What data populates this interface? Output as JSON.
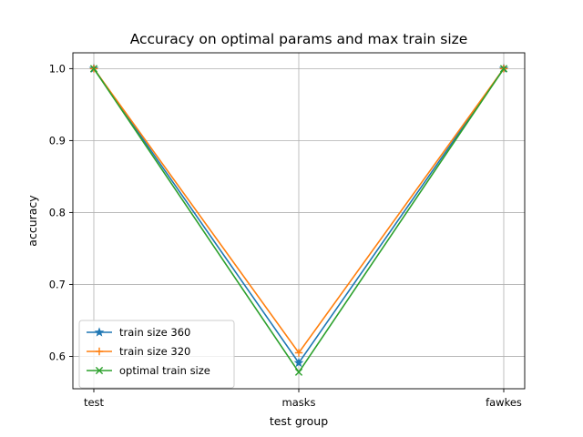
{
  "chart_data": {
    "type": "line",
    "title": "Accuracy on optimal params and max train size",
    "xlabel": "test group",
    "ylabel": "accuracy",
    "categories": [
      "test",
      "masks",
      "fawkes"
    ],
    "ylim": [
      0.555,
      1.022
    ],
    "yticks": [
      0.6,
      0.7,
      0.8,
      0.9,
      1.0
    ],
    "ytick_labels": [
      "0.6",
      "0.7",
      "0.8",
      "0.9",
      "1.0"
    ],
    "grid": true,
    "legend_position": "lower-left",
    "series": [
      {
        "name": "train size 360",
        "values": [
          1.0,
          0.591,
          1.0
        ],
        "color": "#1f77b4",
        "marker": "star"
      },
      {
        "name": "train size 320",
        "values": [
          1.0,
          0.605,
          1.0
        ],
        "color": "#ff7f0e",
        "marker": "plus"
      },
      {
        "name": "optimal train size",
        "values": [
          1.0,
          0.578,
          1.0
        ],
        "color": "#2ca02c",
        "marker": "x"
      }
    ]
  }
}
